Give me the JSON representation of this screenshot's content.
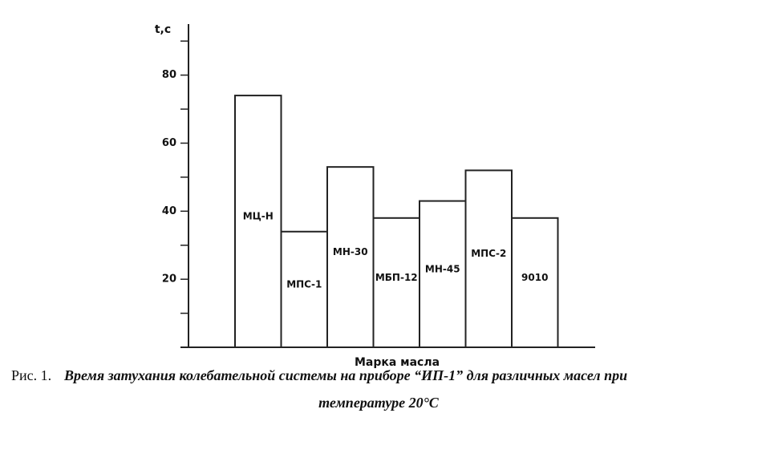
{
  "chart_data": {
    "type": "bar",
    "y_label": "t,c",
    "x_label": "Марка масла",
    "categories": [
      "МЦ-Н",
      "МПС-1",
      "МН-30",
      "МБП-12",
      "МН-45",
      "МПС-2",
      "9010"
    ],
    "values": [
      74,
      34,
      53,
      38,
      43,
      52,
      38
    ],
    "color": "#ffffff",
    "ylim": [
      0,
      95
    ],
    "yticks": [
      20,
      40,
      60,
      80
    ],
    "minor_yticks": [
      10,
      30,
      50,
      70,
      90
    ],
    "caption_prefix": "Рис. 1.",
    "caption_lines": [
      "Время затухания колебательной системы на приборе “ИП-1” для различных масел при",
      "температуре 20°С"
    ]
  }
}
